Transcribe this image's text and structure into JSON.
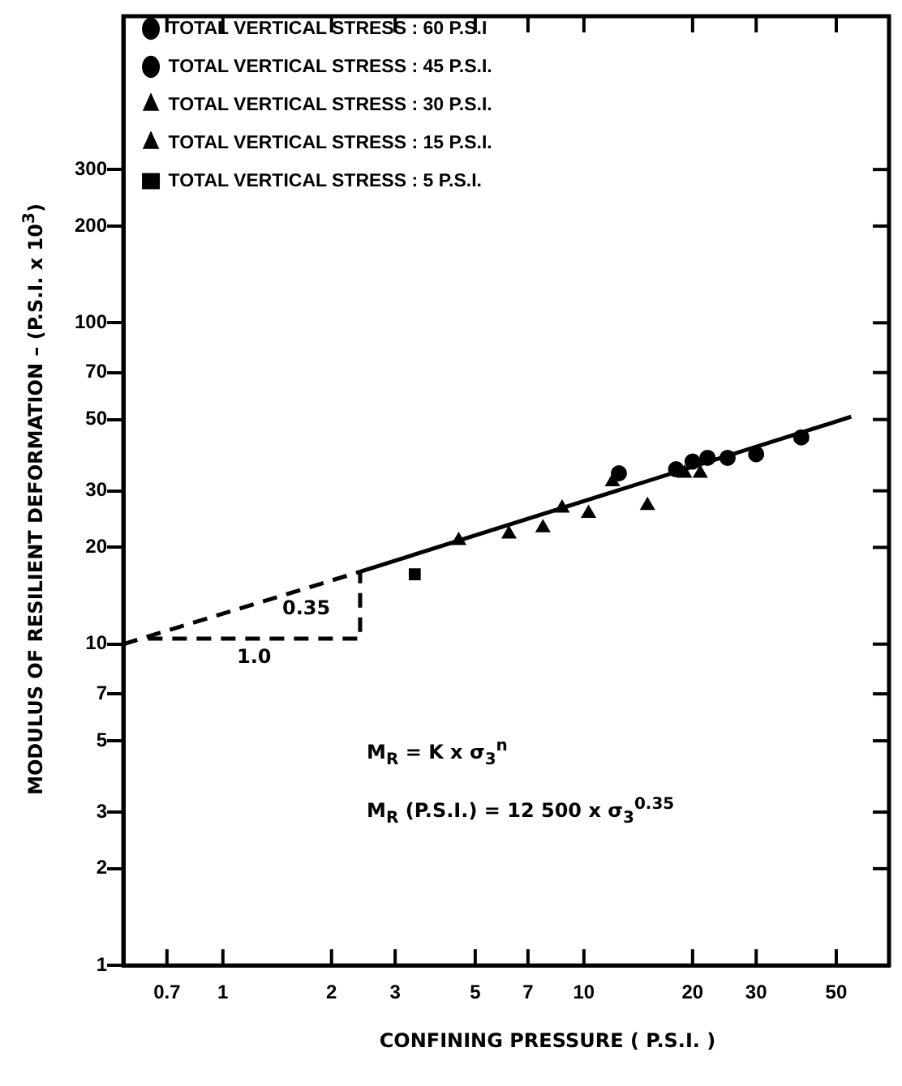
{
  "chart_data": {
    "type": "scatter",
    "xlabel": "CONFINING PRESSURE ( P.S.I. )",
    "ylabel": "MODULUS OF RESILIENT DEFORMATION – (P.S.I. x 10$^{3}$)",
    "log": "xy",
    "xlim": [
      0.53,
      70
    ],
    "xticks": [
      0.7,
      1,
      2,
      3,
      5,
      7,
      10,
      20,
      30,
      50
    ],
    "ylim": [
      1,
      900
    ],
    "yticks": [
      1,
      2,
      3,
      5,
      7,
      10,
      20,
      30,
      50,
      70,
      100,
      200,
      300
    ],
    "grid": false,
    "legend": "top left",
    "series": [
      {
        "name": "TOTAL VERTICAL STRESS : 60 P.S.I",
        "color": "#000000",
        "marker": "circle",
        "x": [
          20,
          25,
          30,
          40
        ],
        "values": [
          37,
          38,
          39,
          44
        ]
      },
      {
        "name": "TOTAL VERTICAL STRESS : 45 P.S.I.",
        "color": "#000000",
        "marker": "circle",
        "x": [
          12.5,
          18,
          22
        ],
        "values": [
          34,
          35,
          38
        ]
      },
      {
        "name": "TOTAL VERTICAL STRESS : 30 P.S.I.",
        "color": "#000000",
        "marker": "triangle",
        "x": [
          8.7,
          12,
          15,
          19,
          21
        ],
        "values": [
          26.5,
          32,
          27,
          34,
          34
        ]
      },
      {
        "name": "TOTAL VERTICAL STRESS : 15 P.S.I.",
        "color": "#000000",
        "marker": "triangle",
        "x": [
          4.5,
          6.2,
          7.7,
          10.3
        ],
        "values": [
          21,
          22,
          23,
          25.5
        ]
      },
      {
        "name": "TOTAL VERTICAL STRESS : 5 P.S.I.",
        "color": "#000000",
        "marker": "square",
        "x": [
          3.4
        ],
        "values": [
          16.5
        ]
      },
      {
        "type": "line",
        "color": "#000000",
        "line_style": "solid",
        "marker": "none",
        "x": [
          2.4,
          55
        ],
        "values": [
          16.8,
          51
        ]
      },
      {
        "type": "line",
        "color": "#000000",
        "line_style": "dashed",
        "marker": "none",
        "x": [
          0.53,
          2.4
        ],
        "values": [
          10,
          16.8
        ]
      },
      {
        "type": "line",
        "color": "#000000",
        "line_style": "dashed",
        "marker": "none",
        "x": [
          0.62,
          2.4,
          2.4
        ],
        "values": [
          10.4,
          10.4,
          16.8
        ]
      }
    ],
    "annotations": [
      "1.0",
      "0.35",
      "M$_{R}$ = K x σ$_{3}$$^{n}$",
      "M$_{R}$ (P.S.I.) = 12 500 x σ$_{3}$$^{0.35}$"
    ]
  }
}
